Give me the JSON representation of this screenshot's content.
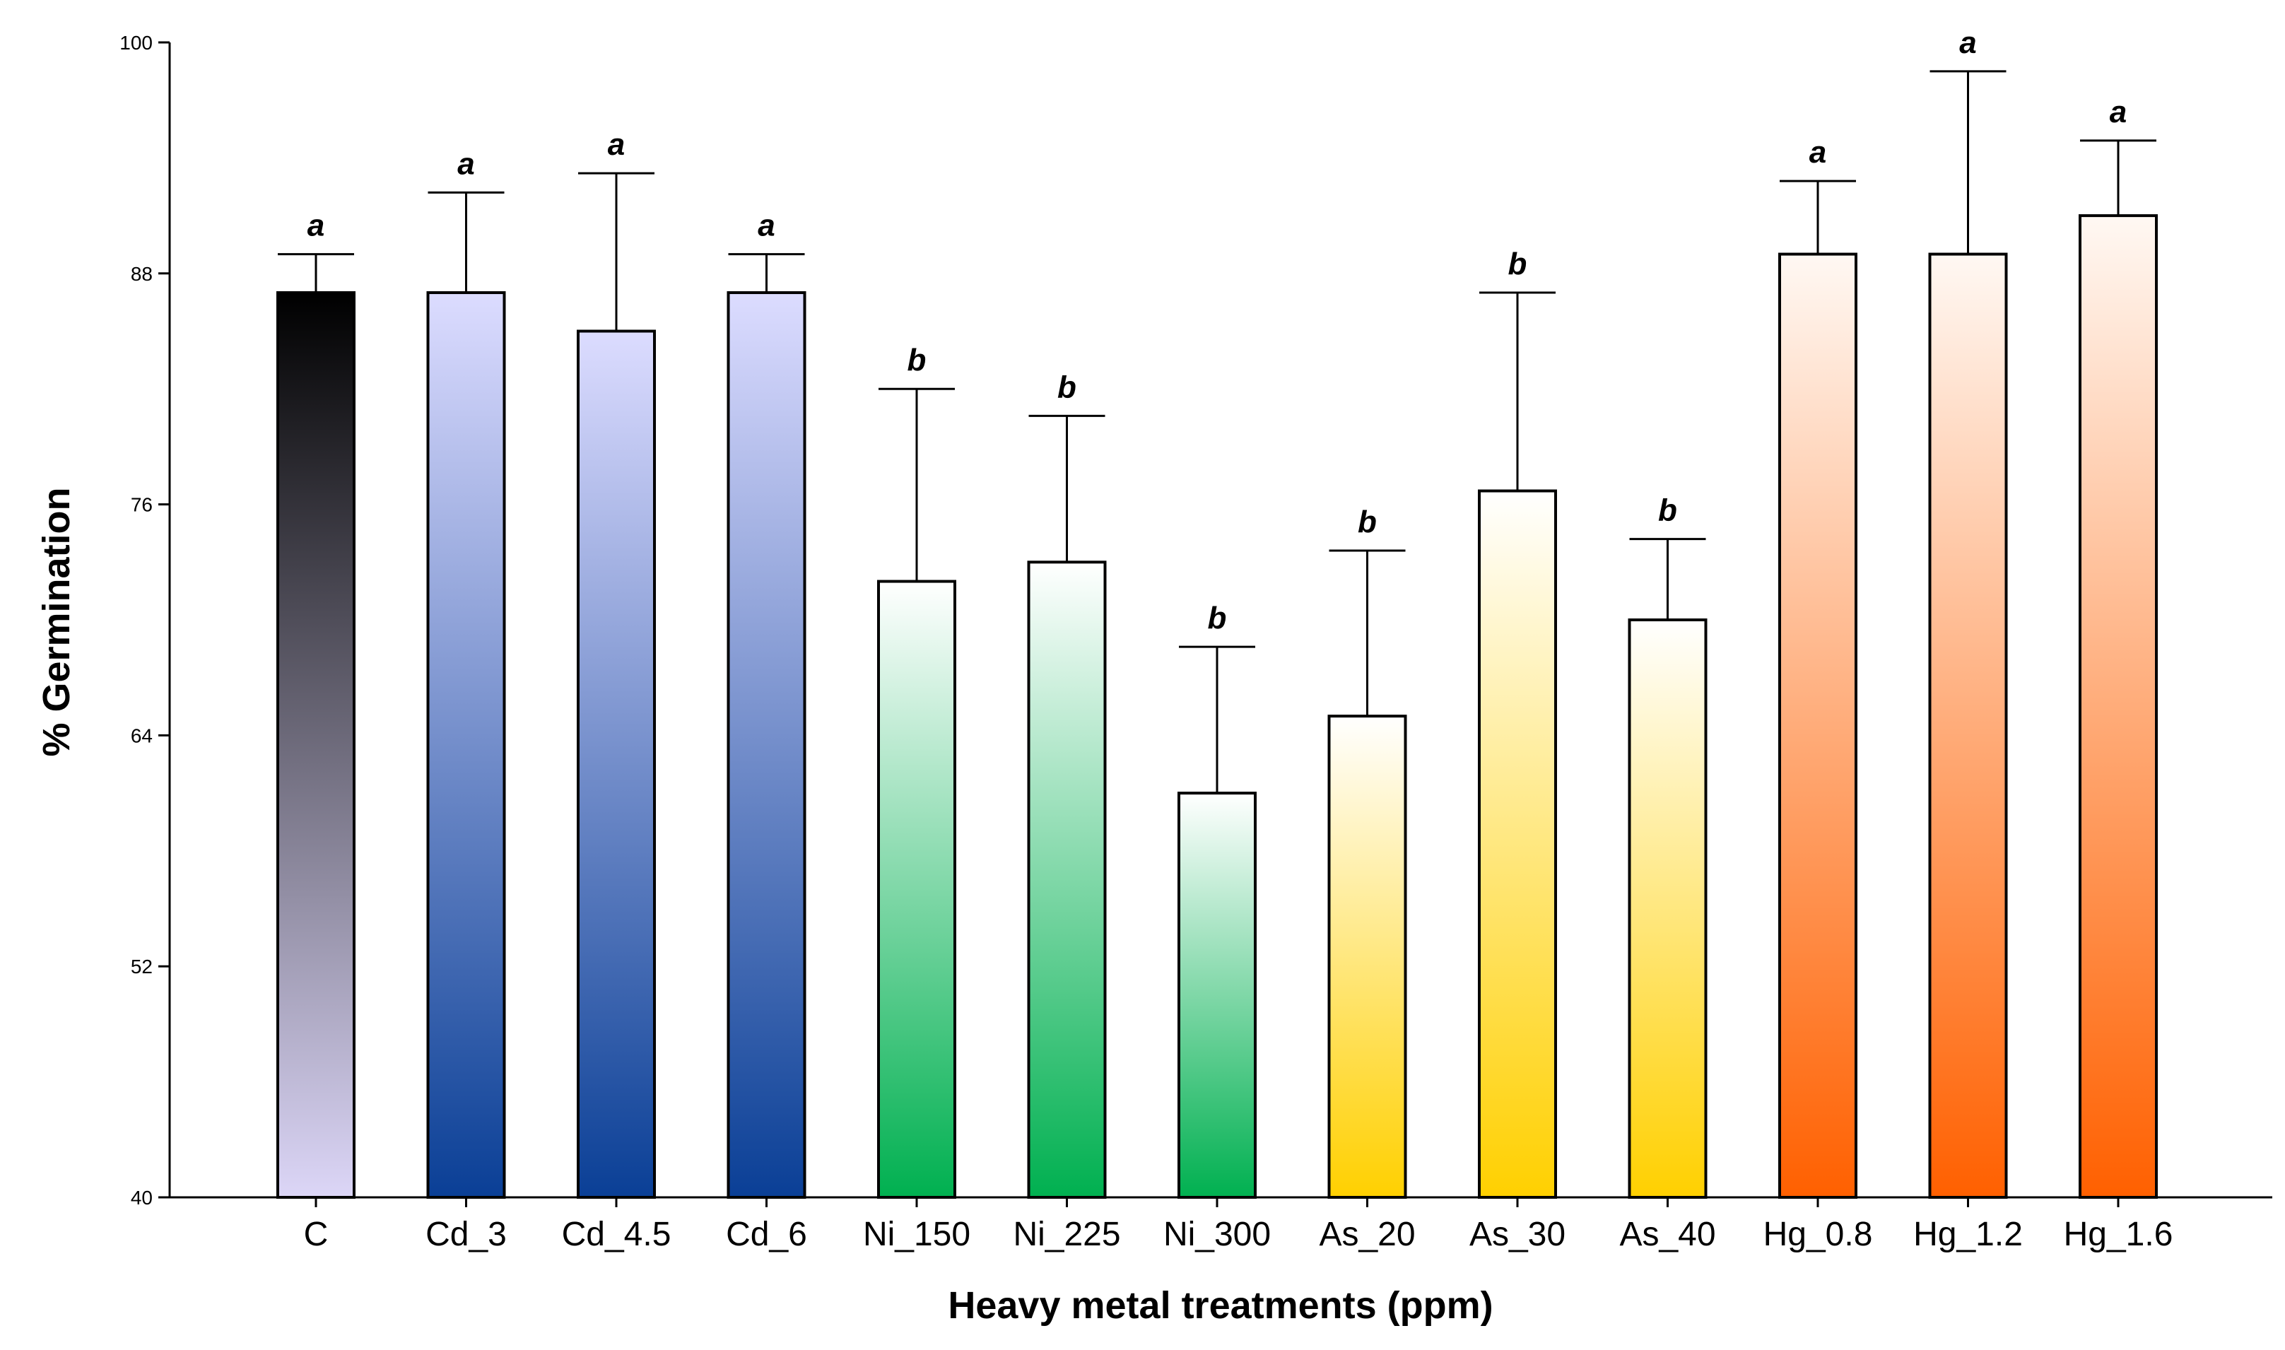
{
  "chart_data": {
    "type": "bar",
    "title": "",
    "xlabel": "Heavy metal treatments (ppm)",
    "ylabel": "% Germination",
    "ylim": [
      40,
      100
    ],
    "yticks": [
      40,
      52,
      64,
      76,
      88,
      100
    ],
    "grid": false,
    "categories": [
      "C",
      "Cd_3",
      "Cd_4.5",
      "Cd_6",
      "Ni_150",
      "Ni_225",
      "Ni_300",
      "As_20",
      "As_30",
      "As_40",
      "Hg_0.8",
      "Hg_1.2",
      "Hg_1.6"
    ],
    "values": [
      87,
      87,
      85,
      87,
      72,
      73,
      61,
      65,
      76.7,
      70,
      89,
      89,
      91
    ],
    "error": [
      2,
      5.2,
      8.2,
      2,
      10,
      7.6,
      7.6,
      8.6,
      10.3,
      4.2,
      3.8,
      9.5,
      3.9
    ],
    "significance": [
      "a",
      "a",
      "a",
      "a",
      "b",
      "b",
      "b",
      "b",
      "b",
      "b",
      "a",
      "a",
      "a"
    ],
    "gradients": [
      [
        "#000000",
        "#dcd6f7"
      ],
      [
        "#dcdcff",
        "#0a3f96"
      ],
      [
        "#dcdcff",
        "#0a3f96"
      ],
      [
        "#dcdcff",
        "#0a3f96"
      ],
      [
        "#ffffff",
        "#00b050"
      ],
      [
        "#ffffff",
        "#00b050"
      ],
      [
        "#ffffff",
        "#00b050"
      ],
      [
        "#ffffff",
        "#ffd000"
      ],
      [
        "#ffffff",
        "#ffd000"
      ],
      [
        "#ffffff",
        "#ffd000"
      ],
      [
        "#fff8f3",
        "#ff6000"
      ],
      [
        "#fff8f3",
        "#ff6000"
      ],
      [
        "#fff8f3",
        "#ff6000"
      ]
    ]
  }
}
